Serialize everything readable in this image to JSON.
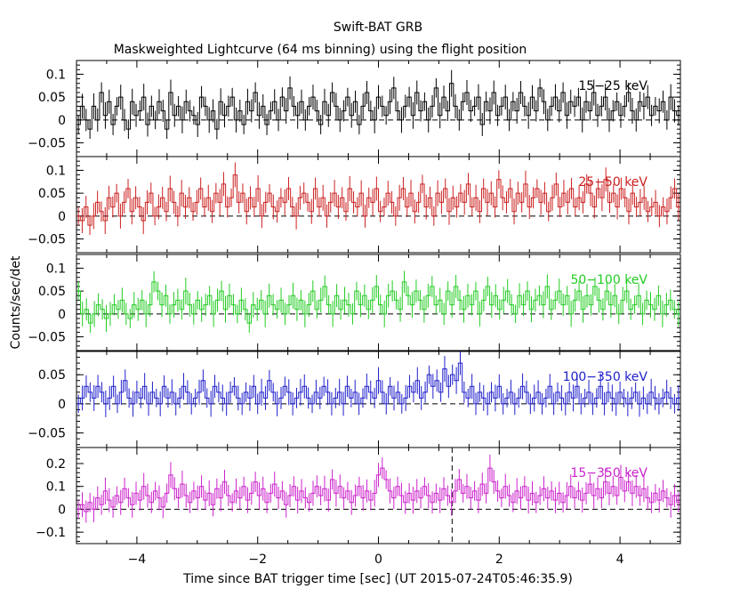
{
  "chart_data": {
    "type": "line",
    "title": "Swift-BAT GRB",
    "subtitle": "Maskweighted Lightcurve (64 ms binning) using the flight position",
    "xlabel": "Time since BAT trigger time [sec] (UT 2015-07-24T05:46:35.9)",
    "ylabel": "Counts/sec/det",
    "xlim": [
      -5,
      5
    ],
    "x_ticks": [
      -4,
      -2,
      0,
      2,
      4
    ],
    "bin_width": 0.064,
    "trigger_marker_x": 1.22,
    "grid": false,
    "panels": [
      {
        "label": "15−25 keV",
        "color": "#000000",
        "ylim": [
          -0.08,
          0.13
        ],
        "y_ticks": [
          -0.05,
          0,
          0.05,
          0.1
        ],
        "y_tick_labels": [
          "−0.05",
          "0",
          "0.05",
          "0.1"
        ],
        "values": [
          -0.01,
          0.03,
          0.0,
          -0.02,
          0.03,
          0.0,
          0.06,
          0.01,
          0.04,
          -0.01,
          0.03,
          0.05,
          0.0,
          -0.02,
          0.04,
          0.01,
          0.02,
          0.05,
          -0.01,
          0.03,
          0.0,
          0.04,
          0.02,
          -0.02,
          0.06,
          0.01,
          0.03,
          0.0,
          0.04,
          0.02,
          0.01,
          -0.01,
          0.05,
          0.03,
          0.0,
          0.02,
          -0.02,
          0.04,
          0.01,
          0.03,
          0.05,
          0.0,
          0.02,
          -0.01,
          0.04,
          0.02,
          0.06,
          0.01,
          0.03,
          -0.01,
          0.02,
          0.04,
          0.0,
          0.05,
          0.02,
          0.07,
          0.03,
          0.01,
          0.04,
          0.0,
          0.03,
          0.05,
          0.02,
          -0.01,
          0.04,
          0.01,
          0.06,
          0.03,
          0.0,
          0.02,
          0.05,
          0.01,
          0.04,
          -0.01,
          0.03,
          0.06,
          0.02,
          0.0,
          0.05,
          0.03,
          0.01,
          0.04,
          0.07,
          0.02,
          0.0,
          0.03,
          0.05,
          0.01,
          0.06,
          0.02,
          0.04,
          0.0,
          0.03,
          0.07,
          0.01,
          0.05,
          0.02,
          0.08,
          0.03,
          0.0,
          0.04,
          0.06,
          0.02,
          0.03,
          0.05,
          -0.01,
          0.04,
          0.02,
          0.06,
          0.01,
          0.03,
          0.05,
          0.0,
          0.04,
          0.02,
          0.06,
          0.03,
          0.01,
          0.05,
          0.02,
          0.07,
          0.04,
          0.0,
          0.03,
          0.05,
          0.02,
          0.06,
          0.01,
          0.04,
          0.03,
          0.05,
          0.0,
          0.04,
          0.02,
          0.06,
          0.01,
          0.03,
          0.05,
          0.0,
          0.02,
          0.04,
          0.01,
          0.03,
          0.06,
          0.02,
          0.0,
          0.04,
          0.03,
          0.05,
          0.01,
          0.03,
          0.02,
          0.04,
          0.0,
          0.05,
          0.02,
          0.01
        ]
      },
      {
        "label": "25−50 keV",
        "color": "#cc2020",
        "ylim": [
          -0.08,
          0.13
        ],
        "y_ticks": [
          -0.05,
          0,
          0.05,
          0.1
        ],
        "y_tick_labels": [
          "−0.05",
          "0",
          "0.05",
          "0.1"
        ],
        "values": [
          0.0,
          -0.01,
          0.02,
          -0.02,
          0.0,
          0.03,
          0.01,
          -0.01,
          0.04,
          0.02,
          0.05,
          0.0,
          0.03,
          0.06,
          0.01,
          0.04,
          0.02,
          -0.01,
          0.03,
          0.05,
          0.0,
          0.02,
          0.04,
          0.01,
          0.06,
          0.03,
          0.0,
          0.05,
          0.02,
          0.04,
          0.01,
          0.03,
          0.06,
          0.02,
          0.04,
          0.01,
          0.05,
          0.03,
          0.07,
          0.02,
          0.04,
          0.09,
          0.03,
          0.05,
          0.01,
          0.04,
          0.02,
          0.06,
          0.0,
          0.03,
          0.05,
          0.02,
          0.01,
          0.04,
          0.03,
          0.06,
          0.02,
          0.0,
          0.04,
          0.05,
          0.03,
          0.01,
          0.06,
          0.02,
          0.04,
          0.0,
          0.03,
          0.05,
          0.02,
          0.04,
          0.01,
          0.06,
          0.03,
          0.02,
          0.05,
          0.0,
          0.04,
          0.03,
          0.06,
          0.01,
          0.02,
          0.05,
          0.03,
          0.0,
          0.04,
          0.06,
          0.02,
          0.05,
          0.01,
          0.03,
          0.07,
          0.02,
          0.04,
          0.0,
          0.05,
          0.03,
          0.06,
          0.01,
          0.04,
          0.02,
          0.05,
          0.03,
          0.07,
          0.02,
          0.04,
          0.01,
          0.06,
          0.03,
          0.05,
          0.02,
          0.08,
          0.04,
          0.03,
          0.06,
          0.01,
          0.05,
          0.03,
          0.07,
          0.02,
          0.04,
          0.06,
          0.03,
          0.05,
          0.01,
          0.04,
          0.07,
          0.02,
          0.05,
          0.03,
          0.06,
          0.02,
          0.04,
          0.03,
          0.07,
          0.05,
          0.02,
          0.06,
          0.04,
          0.08,
          0.03,
          0.05,
          0.02,
          0.06,
          0.04,
          0.01,
          0.05,
          0.02,
          0.03,
          0.04,
          0.01,
          0.02,
          0.03,
          0.0,
          0.02,
          0.01,
          0.04,
          0.06,
          0.02
        ]
      },
      {
        "label": "50−100 keV",
        "color": "#22cc22",
        "ylim": [
          -0.08,
          0.13
        ],
        "y_ticks": [
          -0.05,
          0,
          0.05,
          0.1
        ],
        "y_tick_labels": [
          "−0.05",
          "0",
          "0.05",
          "0.1"
        ],
        "values": [
          0.05,
          0.0,
          0.01,
          -0.02,
          0.0,
          0.02,
          0.01,
          -0.01,
          0.0,
          0.02,
          0.01,
          0.03,
          0.0,
          -0.01,
          0.02,
          0.01,
          0.03,
          0.0,
          0.02,
          0.07,
          0.05,
          0.02,
          0.04,
          0.0,
          0.02,
          0.03,
          0.01,
          0.05,
          0.02,
          0.0,
          0.03,
          0.01,
          0.02,
          0.04,
          0.0,
          0.03,
          0.05,
          0.01,
          0.04,
          0.02,
          0.0,
          0.03,
          0.01,
          -0.02,
          0.02,
          0.01,
          0.03,
          0.0,
          0.04,
          0.02,
          0.01,
          0.03,
          0.0,
          0.02,
          0.04,
          0.01,
          0.03,
          0.0,
          0.02,
          0.05,
          0.01,
          0.03,
          0.06,
          0.02,
          0.0,
          0.04,
          0.01,
          0.03,
          0.02,
          0.0,
          0.05,
          0.02,
          0.04,
          0.01,
          0.03,
          0.06,
          0.02,
          0.0,
          0.04,
          0.05,
          0.03,
          0.01,
          0.07,
          0.04,
          0.02,
          0.05,
          0.03,
          0.01,
          0.04,
          0.06,
          0.02,
          0.03,
          0.0,
          0.05,
          0.02,
          0.06,
          0.03,
          0.01,
          0.04,
          0.02,
          0.05,
          0.0,
          0.03,
          0.06,
          0.02,
          0.04,
          0.01,
          0.03,
          0.05,
          0.02,
          0.0,
          0.04,
          0.02,
          0.05,
          0.01,
          0.03,
          0.04,
          0.02,
          0.06,
          0.01,
          0.03,
          0.05,
          0.02,
          0.04,
          0.0,
          0.03,
          0.05,
          0.01,
          0.04,
          0.02,
          0.06,
          0.03,
          0.01,
          0.05,
          0.02,
          0.04,
          0.0,
          0.03,
          0.05,
          0.01,
          0.02,
          0.04,
          0.0,
          0.03,
          0.02,
          0.01,
          0.04,
          0.0,
          0.02,
          0.03,
          0.01,
          0.0
        ]
      },
      {
        "label": "100−350 keV",
        "color": "#2020cc",
        "ylim": [
          -0.075,
          0.09
        ],
        "y_ticks": [
          -0.05,
          0,
          0.05
        ],
        "y_tick_labels": [
          "−0.05",
          "0",
          "0.05"
        ],
        "values": [
          0.0,
          0.01,
          0.03,
          0.02,
          0.01,
          0.03,
          0.02,
          0.0,
          0.01,
          0.03,
          0.0,
          0.02,
          0.04,
          0.01,
          0.0,
          0.02,
          0.01,
          0.03,
          0.0,
          0.02,
          0.01,
          0.0,
          0.03,
          0.01,
          0.02,
          0.0,
          0.01,
          0.03,
          0.02,
          0.0,
          0.01,
          0.02,
          0.04,
          0.01,
          0.0,
          0.03,
          0.02,
          0.01,
          0.0,
          0.02,
          0.03,
          0.01,
          0.0,
          0.02,
          0.01,
          0.03,
          0.0,
          0.02,
          0.01,
          0.04,
          0.02,
          0.0,
          0.01,
          0.03,
          0.02,
          0.0,
          0.01,
          0.02,
          0.03,
          0.01,
          0.0,
          0.02,
          0.01,
          0.03,
          0.02,
          0.0,
          0.01,
          0.02,
          0.0,
          0.03,
          0.01,
          0.02,
          0.0,
          0.01,
          0.03,
          0.02,
          0.01,
          0.04,
          0.02,
          0.0,
          0.03,
          0.01,
          0.02,
          0.0,
          0.01,
          0.03,
          0.02,
          0.04,
          0.01,
          0.02,
          0.05,
          0.03,
          0.04,
          0.02,
          0.06,
          0.03,
          0.05,
          0.04,
          0.07,
          0.02,
          0.01,
          0.03,
          0.0,
          0.02,
          0.01,
          0.0,
          0.02,
          0.01,
          0.03,
          0.0,
          0.01,
          0.02,
          0.0,
          0.01,
          0.03,
          0.02,
          0.0,
          0.01,
          0.02,
          0.0,
          0.01,
          0.03,
          0.0,
          0.02,
          0.01,
          0.0,
          0.02,
          0.01,
          0.03,
          0.0,
          0.01,
          0.02,
          0.0,
          0.01,
          0.03,
          0.0,
          0.02,
          0.01,
          0.0,
          0.02,
          0.01,
          0.0,
          0.01,
          0.02,
          0.0,
          0.01,
          0.0,
          0.02,
          0.01,
          0.0,
          0.01,
          0.02,
          0.01,
          0.0,
          0.01
        ]
      },
      {
        "label": "15−350 keV",
        "color": "#cc22cc",
        "ylim": [
          -0.15,
          0.27
        ],
        "y_ticks": [
          -0.1,
          0,
          0.1,
          0.2
        ],
        "y_tick_labels": [
          "−0.1",
          "0",
          "0.1",
          "0.2"
        ],
        "values": [
          0.0,
          0.02,
          -0.01,
          0.03,
          0.0,
          0.05,
          0.02,
          0.08,
          0.04,
          0.01,
          0.06,
          0.03,
          0.09,
          0.05,
          0.02,
          0.07,
          0.04,
          0.1,
          0.06,
          0.03,
          0.08,
          0.05,
          0.01,
          0.07,
          0.15,
          0.09,
          0.05,
          0.11,
          0.06,
          0.03,
          0.08,
          0.05,
          0.1,
          0.04,
          0.07,
          0.02,
          0.09,
          0.05,
          0.12,
          0.06,
          0.03,
          0.08,
          0.05,
          0.1,
          0.04,
          0.07,
          0.12,
          0.06,
          0.09,
          0.03,
          0.07,
          0.11,
          0.05,
          0.08,
          0.02,
          0.06,
          0.1,
          0.04,
          0.08,
          0.05,
          0.03,
          0.07,
          0.1,
          0.06,
          0.09,
          0.04,
          0.13,
          0.07,
          0.1,
          0.05,
          0.08,
          0.03,
          0.06,
          0.1,
          0.05,
          0.08,
          0.04,
          0.07,
          0.15,
          0.18,
          0.13,
          0.08,
          0.05,
          0.1,
          0.06,
          0.03,
          0.07,
          0.04,
          0.08,
          0.05,
          0.1,
          0.06,
          0.03,
          0.07,
          0.04,
          0.09,
          0.06,
          0.03,
          0.08,
          0.13,
          0.07,
          0.1,
          0.05,
          0.08,
          0.04,
          0.11,
          0.07,
          0.18,
          0.12,
          0.08,
          0.05,
          0.1,
          0.06,
          0.03,
          0.08,
          0.05,
          0.1,
          0.04,
          0.07,
          0.03,
          0.06,
          0.09,
          0.05,
          0.08,
          0.04,
          0.07,
          0.03,
          0.06,
          0.1,
          0.05,
          0.08,
          0.04,
          0.07,
          0.11,
          0.06,
          0.09,
          0.05,
          0.12,
          0.07,
          0.1,
          0.06,
          0.14,
          0.08,
          0.12,
          0.07,
          0.1,
          0.06,
          0.09,
          0.05,
          0.03,
          0.07,
          0.04,
          0.08,
          0.05,
          0.02,
          0.06,
          0.03
        ]
      }
    ]
  }
}
